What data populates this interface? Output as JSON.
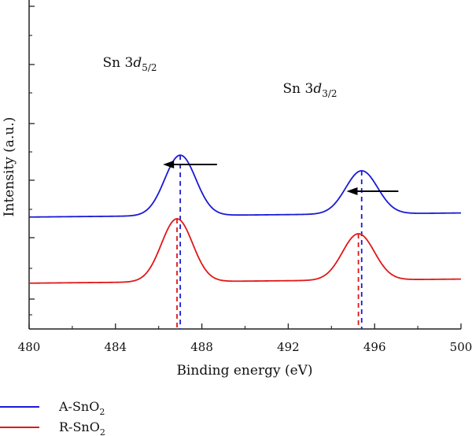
{
  "chart_data": {
    "type": "line",
    "xlabel": "Binding energy (eV)",
    "ylabel": "Intensity (a.u.)",
    "xlim": [
      480,
      500
    ],
    "xticks": [
      "480",
      "484",
      "488",
      "492",
      "496",
      "500"
    ],
    "grid": false,
    "legend_placement": "bottom-left",
    "series": [
      {
        "name": "A-SnO2",
        "name_parts": {
          "base": "A-SnO",
          "sub": "2"
        },
        "color": "#1a1ad6",
        "baseline": 0.38,
        "slope": 0.0065,
        "peaks": [
          {
            "center": 487.0,
            "height": 1.92,
            "sigma": 0.72
          },
          {
            "center": 495.4,
            "height": 1.37,
            "sigma": 0.74
          }
        ]
      },
      {
        "name": "R-SnO2",
        "name_parts": {
          "base": "R-SnO",
          "sub": "2"
        },
        "color": "#e01818",
        "baseline": -1.72,
        "slope": 0.0065,
        "peaks": [
          {
            "center": 486.85,
            "height": 2.0,
            "sigma": 0.72
          },
          {
            "center": 495.25,
            "height": 1.47,
            "sigma": 0.74
          }
        ]
      }
    ],
    "reference_lines": [
      {
        "x": 487.0,
        "color": "#1a1ad6"
      },
      {
        "x": 495.4,
        "color": "#1a1ad6"
      },
      {
        "x": 486.85,
        "color": "#e01818"
      },
      {
        "x": 495.25,
        "color": "#e01818"
      }
    ],
    "annotations": [
      {
        "label_parts": {
          "pre": "Sn 3",
          "italic": "d",
          "sub": "5/2"
        },
        "x": 487.0
      },
      {
        "label_parts": {
          "pre": "Sn 3",
          "italic": "d",
          "sub": "3/2"
        },
        "x": 495.4
      }
    ],
    "arrows": [
      {
        "from_x": 488.7,
        "to_x": 486.2,
        "direction": "left"
      },
      {
        "from_x": 497.1,
        "to_x": 494.7,
        "direction": "left"
      }
    ]
  }
}
